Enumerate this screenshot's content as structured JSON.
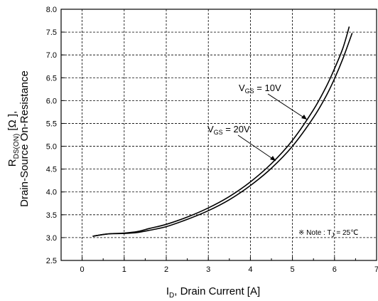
{
  "chart_data": {
    "type": "line",
    "xlabel": {
      "main": "I",
      "sub": "D",
      "rest": ", Drain Current [A]"
    },
    "ylabel": {
      "line1_main": "R",
      "line1_sub": "DS(ON)",
      "line1_rest": " [Ω ],",
      "line2": "Drain-Source On-Resistance"
    },
    "xlim": [
      -0.5,
      7
    ],
    "ylim": [
      2.5,
      8.0
    ],
    "xticks": [
      0,
      1,
      2,
      3,
      4,
      5,
      6,
      7
    ],
    "xtick_labels": [
      "0",
      "1",
      "2",
      "3",
      "4",
      "5",
      "6",
      "7"
    ],
    "yticks": [
      2.5,
      3.0,
      3.5,
      4.0,
      4.5,
      5.0,
      5.5,
      6.0,
      6.5,
      7.0,
      7.5,
      8.0
    ],
    "ytick_labels": [
      "2.5",
      "3.0",
      "3.5",
      "4.0",
      "4.5",
      "5.0",
      "5.5",
      "6.0",
      "6.5",
      "7.0",
      "7.5",
      "8.0"
    ],
    "grid": true,
    "series": [
      {
        "label": {
          "main": "V",
          "sub": "GS",
          "rest": " = 10V"
        },
        "x": [
          0.25,
          0.6,
          1.0,
          1.3,
          1.6,
          2.0,
          2.5,
          3.0,
          3.5,
          4.0,
          4.5,
          5.0,
          5.5,
          5.8,
          6.0,
          6.2,
          6.35
        ],
        "y": [
          3.03,
          3.08,
          3.1,
          3.13,
          3.2,
          3.29,
          3.45,
          3.65,
          3.9,
          4.22,
          4.62,
          5.13,
          5.8,
          6.3,
          6.7,
          7.15,
          7.62
        ]
      },
      {
        "label": {
          "main": "V",
          "sub": "GS",
          "rest": " = 20V"
        },
        "x": [
          0.25,
          0.6,
          1.0,
          1.3,
          1.6,
          2.0,
          2.5,
          3.0,
          3.5,
          4.0,
          4.5,
          5.0,
          5.5,
          5.8,
          6.0,
          6.2,
          6.42
        ],
        "y": [
          3.03,
          3.08,
          3.09,
          3.11,
          3.16,
          3.24,
          3.4,
          3.59,
          3.83,
          4.14,
          4.52,
          5.0,
          5.63,
          6.1,
          6.48,
          6.92,
          7.48
        ]
      }
    ],
    "note": {
      "prefix": "※ Note : T",
      "sub": "J",
      "rest": " = 25℃"
    }
  }
}
